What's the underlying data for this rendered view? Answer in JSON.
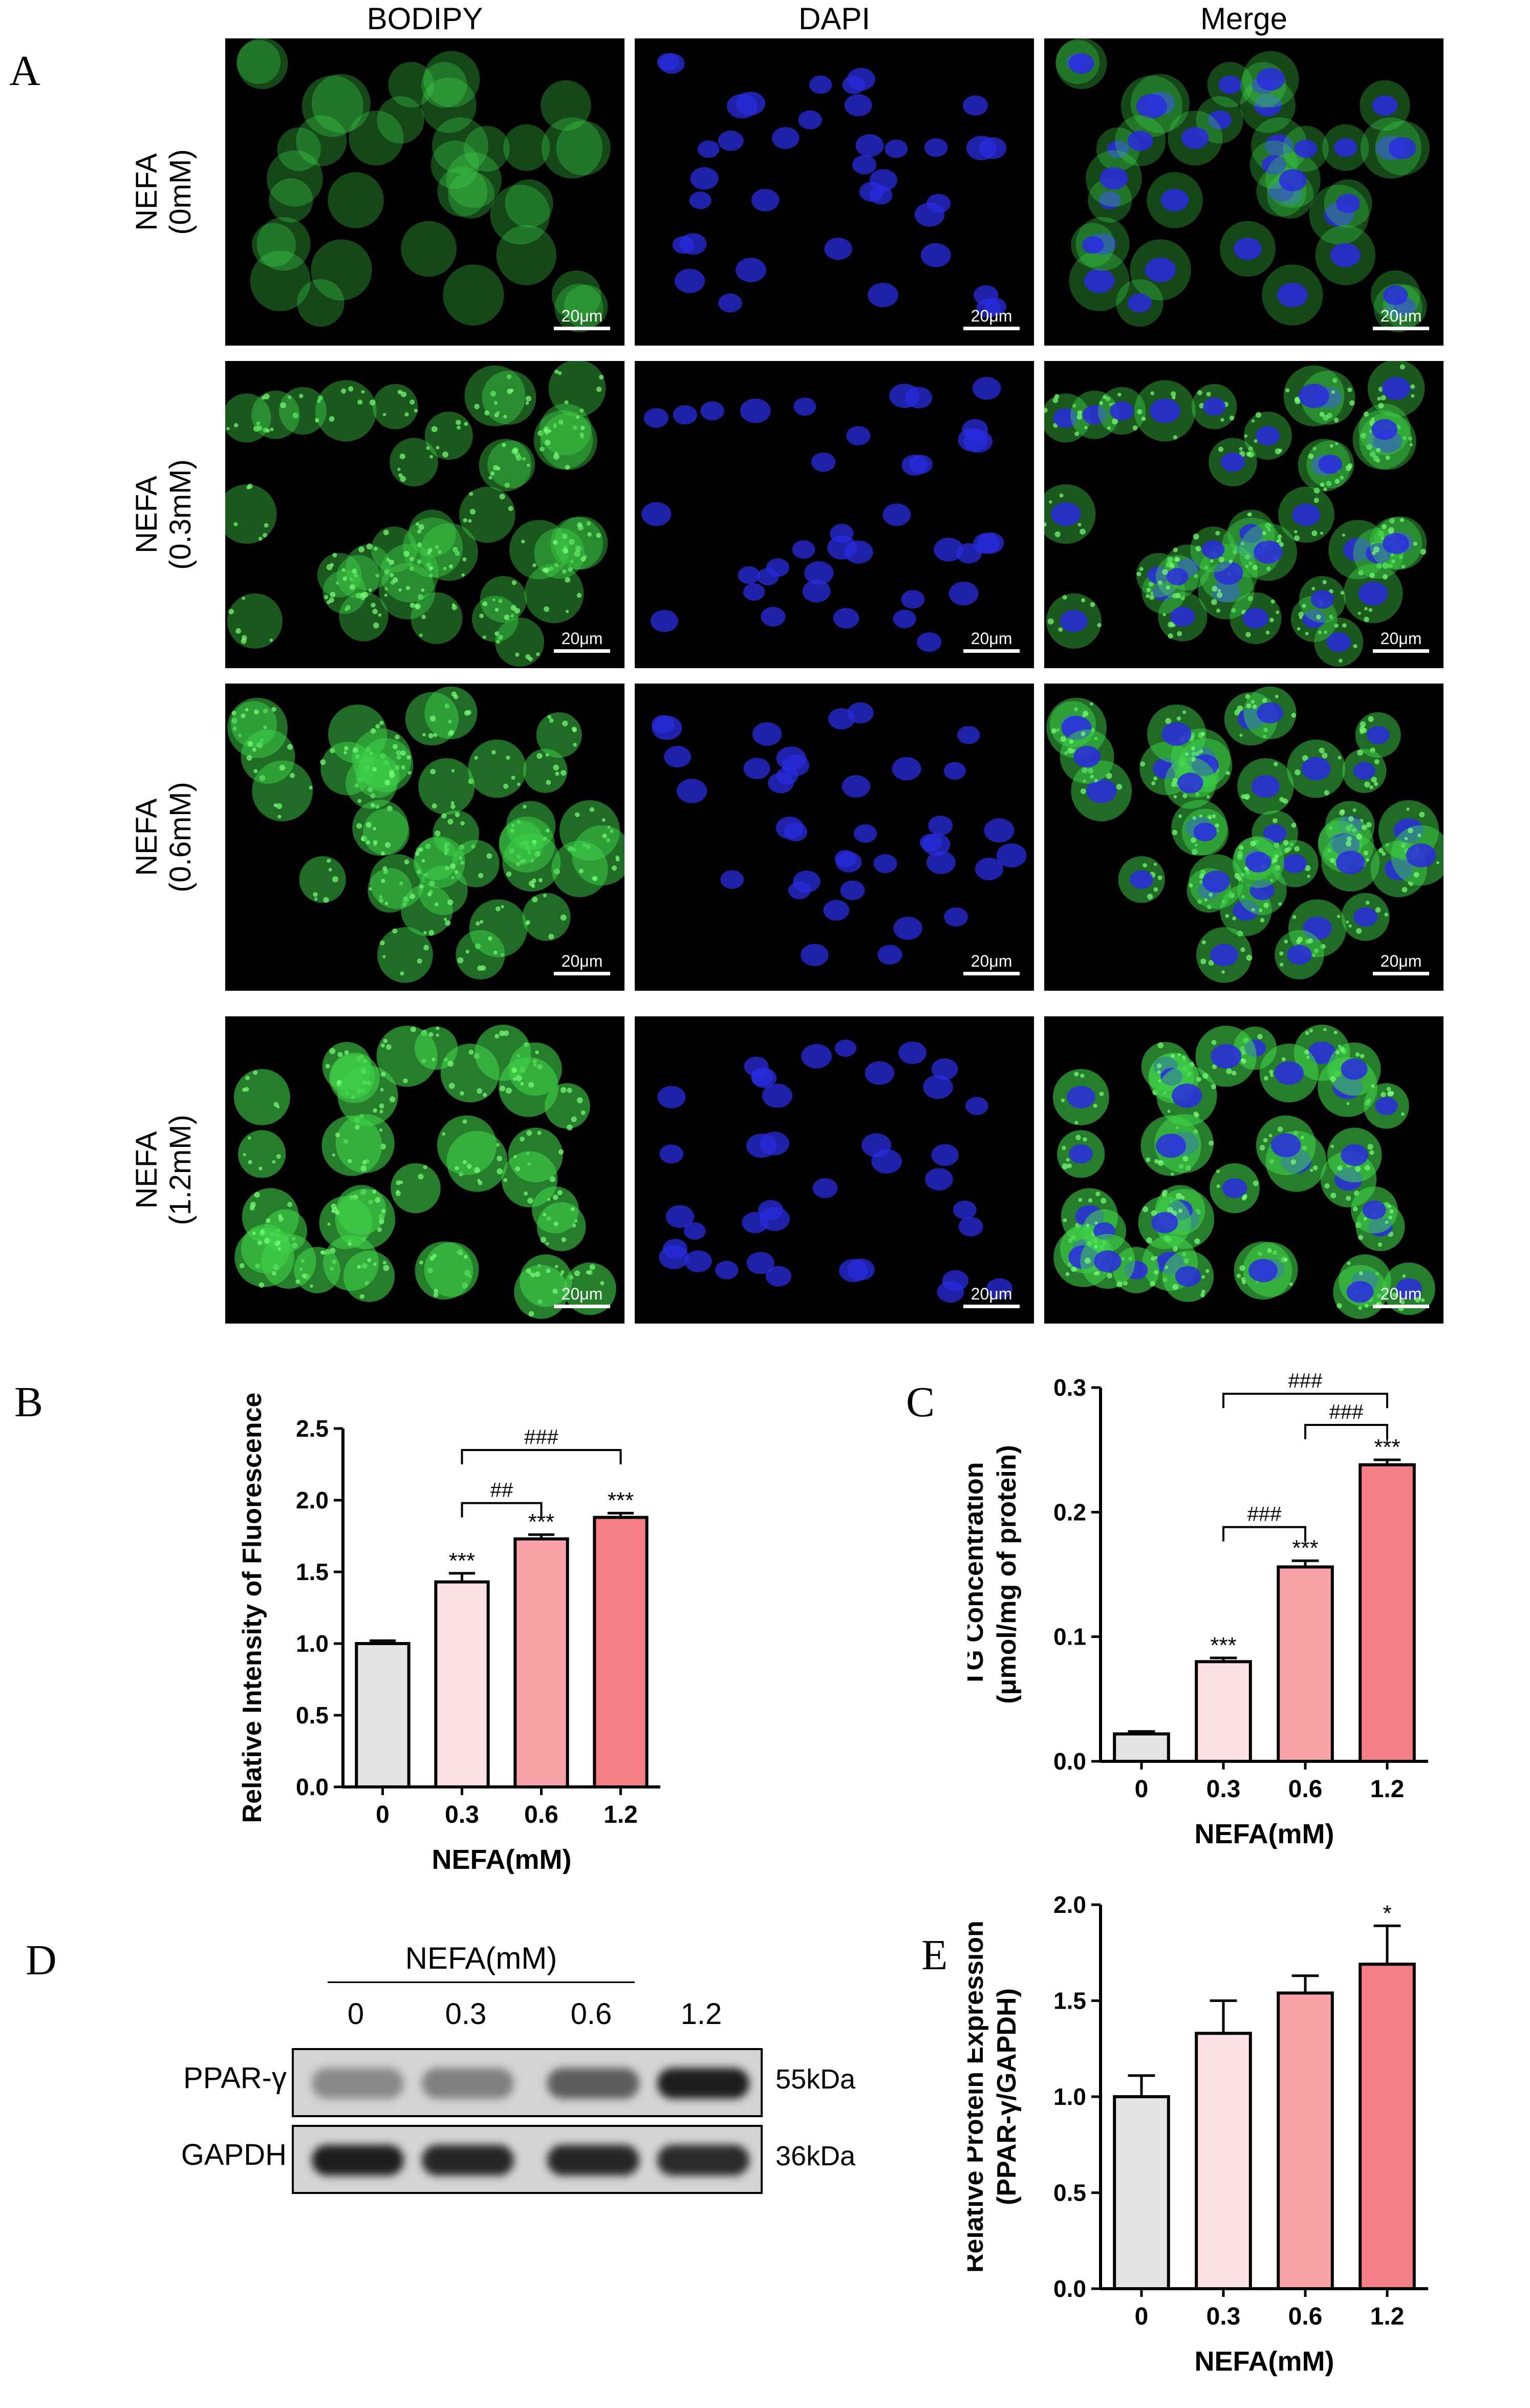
{
  "panel_a": {
    "letter": "A",
    "columns": [
      "BODIPY",
      "DAPI",
      "Merge"
    ],
    "rows": [
      {
        "line1": "NEFA",
        "line2": "(0mM)",
        "level": 0.25
      },
      {
        "line1": "NEFA",
        "line2": "(0.3mM)",
        "level": 0.5
      },
      {
        "line1": "NEFA",
        "line2": "(0.6mM)",
        "level": 0.75
      },
      {
        "line1": "NEFA",
        "line2": "(1.2mM)",
        "level": 1.0
      }
    ],
    "scale_bar": "20μm",
    "colors": {
      "bodipy": "#3fd24a",
      "dapi": "#2a2ce0"
    }
  },
  "panel_b": {
    "letter": "B",
    "chart_data": {
      "type": "bar",
      "categories": [
        "0",
        "0.3",
        "0.6",
        "1.2"
      ],
      "values": [
        1.0,
        1.43,
        1.73,
        1.88
      ],
      "errors": [
        0.02,
        0.06,
        0.03,
        0.03
      ],
      "ylabel": "Relative Intensity of Fluorescence",
      "xlabel": "NEFA(mM)",
      "ylim": [
        0,
        2.5
      ],
      "yticks": [
        "0.0",
        "0.5",
        "1.0",
        "1.5",
        "2.0",
        "2.5"
      ],
      "stars": [
        "",
        "***",
        "***",
        "***"
      ],
      "brackets": [
        {
          "from": 1,
          "to": 2,
          "label": "##",
          "y": 1.98
        },
        {
          "from": 1,
          "to": 3,
          "label": "###",
          "y": 2.35
        }
      ],
      "colors": [
        "#e3e3e3",
        "#fce0e3",
        "#f9a3a8",
        "#f57f84"
      ]
    }
  },
  "panel_c": {
    "letter": "C",
    "chart_data": {
      "type": "bar",
      "categories": [
        "0",
        "0.3",
        "0.6",
        "1.2"
      ],
      "values": [
        0.022,
        0.08,
        0.156,
        0.238
      ],
      "errors": [
        0.002,
        0.003,
        0.005,
        0.004
      ],
      "ylabel_line1": "TG Concentration",
      "ylabel_line2": "(μmol/mg of protein)",
      "xlabel": "NEFA(mM)",
      "ylim": [
        0,
        0.3
      ],
      "yticks": [
        "0.0",
        "0.1",
        "0.2",
        "0.3"
      ],
      "stars": [
        "",
        "***",
        "***",
        "***"
      ],
      "brackets": [
        {
          "from": 1,
          "to": 2,
          "label": "###",
          "y": 0.188
        },
        {
          "from": 2,
          "to": 3,
          "label": "###",
          "y": 0.27
        },
        {
          "from": 1,
          "to": 3,
          "label": "###",
          "y": 0.295
        }
      ],
      "colors": [
        "#e3e3e3",
        "#fce0e3",
        "#f9a3a8",
        "#f57f84"
      ]
    }
  },
  "panel_d": {
    "letter": "D",
    "header": "NEFA(mM)",
    "lanes": [
      "0",
      "0.3",
      "0.6",
      "1.2"
    ],
    "bands": [
      {
        "name": "PPAR-γ",
        "size": "55kDa",
        "intensity": [
          0.35,
          0.4,
          0.6,
          0.95
        ]
      },
      {
        "name": "GAPDH",
        "size": "36kDa",
        "intensity": [
          0.95,
          0.9,
          0.9,
          0.88
        ]
      }
    ]
  },
  "panel_e": {
    "letter": "E",
    "chart_data": {
      "type": "bar",
      "categories": [
        "0",
        "0.3",
        "0.6",
        "1.2"
      ],
      "values": [
        1.0,
        1.33,
        1.54,
        1.69
      ],
      "errors": [
        0.11,
        0.17,
        0.09,
        0.2
      ],
      "ylabel_line1": "Relative Protein Expression",
      "ylabel_line2": "(PPAR-γ/GAPDH)",
      "xlabel": "NEFA(mM)",
      "ylim": [
        0,
        2.0
      ],
      "yticks": [
        "0.0",
        "0.5",
        "1.0",
        "1.5",
        "2.0"
      ],
      "stars": [
        "",
        "",
        "",
        "*"
      ],
      "brackets": [],
      "colors": [
        "#e3e3e3",
        "#fce0e3",
        "#f9a3a8",
        "#f57f84"
      ]
    }
  }
}
